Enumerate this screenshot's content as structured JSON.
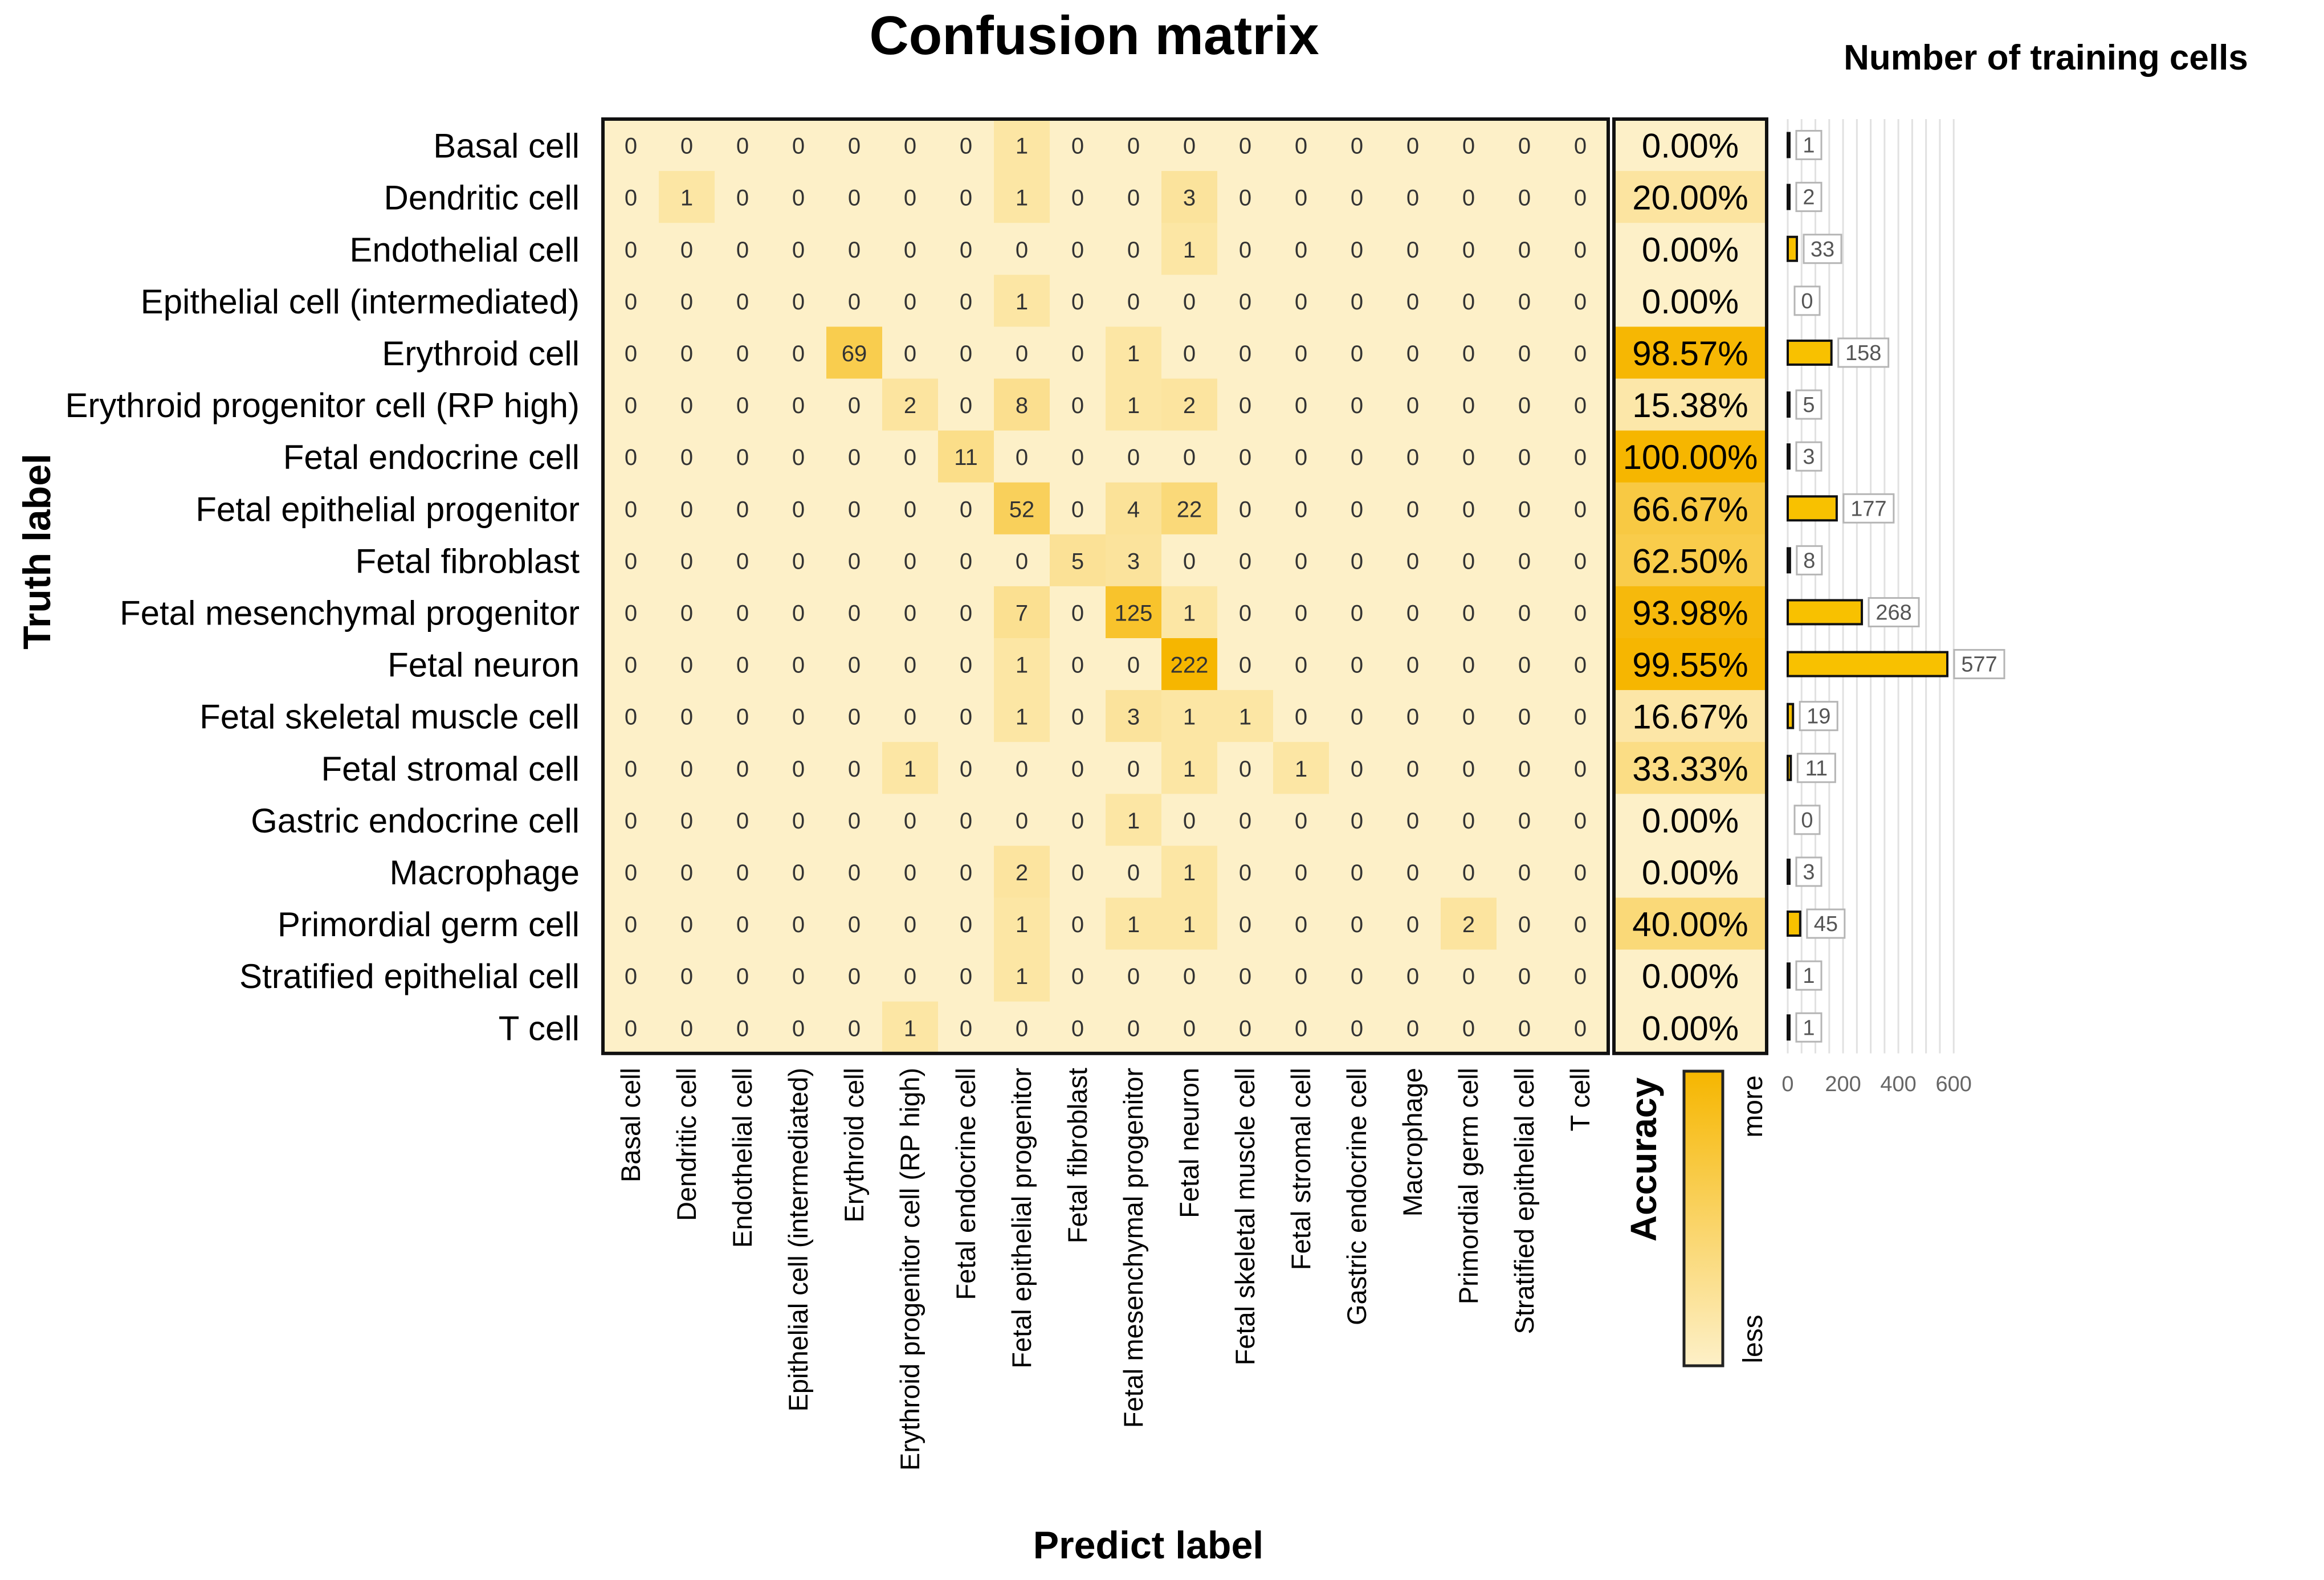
{
  "chart_data": [
    {
      "type": "heatmap",
      "title": "Confusion matrix",
      "xlabel": "Predict label",
      "ylabel": "Truth label",
      "rows": [
        "Basal cell",
        "Dendritic cell",
        "Endothelial cell",
        "Epithelial cell (intermediated)",
        "Erythroid cell",
        "Erythroid progenitor cell (RP high)",
        "Fetal endocrine cell",
        "Fetal epithelial progenitor",
        "Fetal fibroblast",
        "Fetal mesenchymal progenitor",
        "Fetal neuron",
        "Fetal skeletal muscle cell",
        "Fetal stromal cell",
        "Gastric endocrine cell",
        "Macrophage",
        "Primordial germ cell",
        "Stratified epithelial cell",
        "T cell"
      ],
      "columns": [
        "Basal cell",
        "Dendritic cell",
        "Endothelial cell",
        "Epithelial cell (intermediated)",
        "Erythroid cell",
        "Erythroid progenitor cell (RP high)",
        "Fetal endocrine cell",
        "Fetal epithelial progenitor",
        "Fetal fibroblast",
        "Fetal mesenchymal progenitor",
        "Fetal neuron",
        "Fetal skeletal muscle cell",
        "Fetal stromal cell",
        "Gastric endocrine cell",
        "Macrophage",
        "Primordial germ cell",
        "Stratified epithelial cell",
        "T cell"
      ],
      "values": [
        [
          0,
          0,
          0,
          0,
          0,
          0,
          0,
          1,
          0,
          0,
          0,
          0,
          0,
          0,
          0,
          0,
          0,
          0
        ],
        [
          0,
          1,
          0,
          0,
          0,
          0,
          0,
          1,
          0,
          0,
          3,
          0,
          0,
          0,
          0,
          0,
          0,
          0
        ],
        [
          0,
          0,
          0,
          0,
          0,
          0,
          0,
          0,
          0,
          0,
          1,
          0,
          0,
          0,
          0,
          0,
          0,
          0
        ],
        [
          0,
          0,
          0,
          0,
          0,
          0,
          0,
          1,
          0,
          0,
          0,
          0,
          0,
          0,
          0,
          0,
          0,
          0
        ],
        [
          0,
          0,
          0,
          0,
          69,
          0,
          0,
          0,
          0,
          1,
          0,
          0,
          0,
          0,
          0,
          0,
          0,
          0
        ],
        [
          0,
          0,
          0,
          0,
          0,
          2,
          0,
          8,
          0,
          1,
          2,
          0,
          0,
          0,
          0,
          0,
          0,
          0
        ],
        [
          0,
          0,
          0,
          0,
          0,
          0,
          11,
          0,
          0,
          0,
          0,
          0,
          0,
          0,
          0,
          0,
          0,
          0
        ],
        [
          0,
          0,
          0,
          0,
          0,
          0,
          0,
          52,
          0,
          4,
          22,
          0,
          0,
          0,
          0,
          0,
          0,
          0
        ],
        [
          0,
          0,
          0,
          0,
          0,
          0,
          0,
          0,
          5,
          3,
          0,
          0,
          0,
          0,
          0,
          0,
          0,
          0
        ],
        [
          0,
          0,
          0,
          0,
          0,
          0,
          0,
          7,
          0,
          125,
          1,
          0,
          0,
          0,
          0,
          0,
          0,
          0
        ],
        [
          0,
          0,
          0,
          0,
          0,
          0,
          0,
          1,
          0,
          0,
          222,
          0,
          0,
          0,
          0,
          0,
          0,
          0
        ],
        [
          0,
          0,
          0,
          0,
          0,
          0,
          0,
          1,
          0,
          3,
          1,
          1,
          0,
          0,
          0,
          0,
          0,
          0
        ],
        [
          0,
          0,
          0,
          0,
          0,
          1,
          0,
          0,
          0,
          0,
          1,
          0,
          1,
          0,
          0,
          0,
          0,
          0
        ],
        [
          0,
          0,
          0,
          0,
          0,
          0,
          0,
          0,
          0,
          1,
          0,
          0,
          0,
          0,
          0,
          0,
          0,
          0
        ],
        [
          0,
          0,
          0,
          0,
          0,
          0,
          0,
          2,
          0,
          0,
          1,
          0,
          0,
          0,
          0,
          0,
          0,
          0
        ],
        [
          0,
          0,
          0,
          0,
          0,
          0,
          0,
          1,
          0,
          1,
          1,
          0,
          0,
          0,
          0,
          2,
          0,
          0
        ],
        [
          0,
          0,
          0,
          0,
          0,
          0,
          0,
          1,
          0,
          0,
          0,
          0,
          0,
          0,
          0,
          0,
          0,
          0
        ],
        [
          0,
          0,
          0,
          0,
          0,
          1,
          0,
          0,
          0,
          0,
          0,
          0,
          0,
          0,
          0,
          0,
          0,
          0
        ]
      ]
    },
    {
      "type": "heatmap",
      "title": "Accuracy",
      "values": [
        0.0,
        20.0,
        0.0,
        0.0,
        98.57,
        15.38,
        100.0,
        66.67,
        62.5,
        93.98,
        99.55,
        16.67,
        33.33,
        0.0,
        0.0,
        40.0,
        0.0,
        0.0
      ],
      "labels": [
        "0.00%",
        "20.00%",
        "0.00%",
        "0.00%",
        "98.57%",
        "15.38%",
        "100.00%",
        "66.67%",
        "62.50%",
        "93.98%",
        "99.55%",
        "16.67%",
        "33.33%",
        "0.00%",
        "0.00%",
        "40.00%",
        "0.00%",
        "0.00%"
      ],
      "legend": {
        "title": "Accuracy",
        "high_label": "more",
        "low_label": "less"
      }
    },
    {
      "type": "bar",
      "orientation": "horizontal",
      "title": "Number of training cells",
      "categories": [
        "Basal cell",
        "Dendritic cell",
        "Endothelial cell",
        "Epithelial cell (intermediated)",
        "Erythroid cell",
        "Erythroid progenitor cell (RP high)",
        "Fetal endocrine cell",
        "Fetal epithelial progenitor",
        "Fetal fibroblast",
        "Fetal mesenchymal progenitor",
        "Fetal neuron",
        "Fetal skeletal muscle cell",
        "Fetal stromal cell",
        "Gastric endocrine cell",
        "Macrophage",
        "Primordial germ cell",
        "Stratified epithelial cell",
        "T cell"
      ],
      "values": [
        1,
        2,
        33,
        0,
        158,
        5,
        3,
        177,
        8,
        268,
        577,
        19,
        11,
        0,
        3,
        45,
        1,
        1
      ],
      "xlim": [
        0,
        620
      ],
      "xticks": [
        0,
        200,
        400,
        600
      ]
    }
  ],
  "colors": {
    "low": "#fdf0c8",
    "high": "#f6b600",
    "bar_fill": "#f8c100",
    "bar_stroke": "#111111",
    "label_box": "#b5b5b5",
    "grid": "#e1e1e1"
  }
}
